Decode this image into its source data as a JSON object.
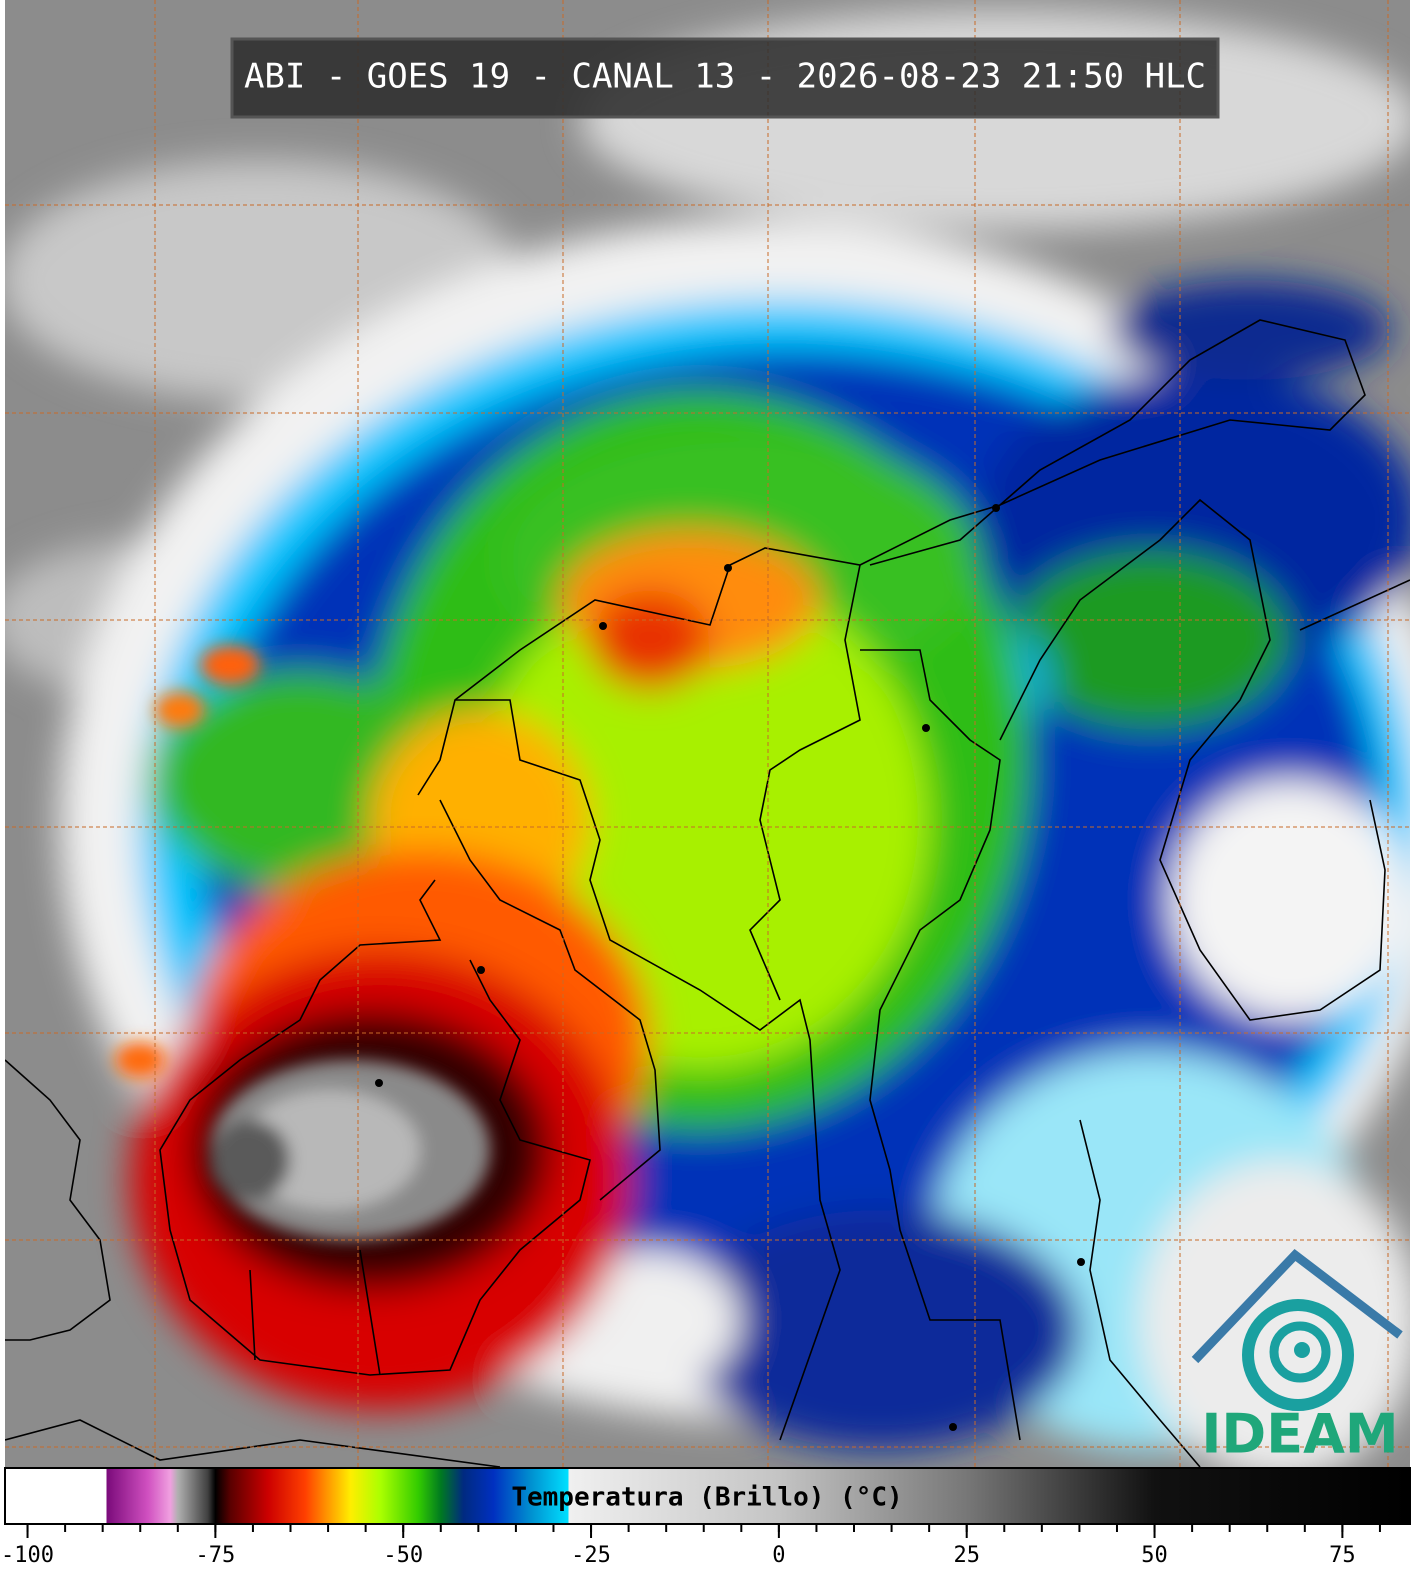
{
  "header": {
    "title": "ABI - GOES 19 - CANAL 13 - 2026-08-23 21:50 HLC"
  },
  "logo": {
    "text": "IDEAM"
  },
  "colorbar": {
    "label": "Temperatura (Brillo) (°C)",
    "xlim": [
      -103,
      84
    ],
    "ticks": [
      -100,
      -75,
      -50,
      -25,
      0,
      25,
      50,
      75
    ],
    "minor_ticks": [
      -100,
      -95,
      -90,
      -85,
      -80,
      -75,
      -70,
      -65,
      -60,
      -55,
      -50,
      -45,
      -40,
      -35,
      -30,
      -25,
      -20,
      -15,
      -10,
      -5,
      0,
      5,
      10,
      15,
      20,
      25,
      30,
      35,
      40,
      45,
      50,
      55,
      60,
      65,
      70,
      75,
      80
    ],
    "stops": [
      {
        "value": -103,
        "color": "#ffffff"
      },
      {
        "value": -89.5,
        "color": "#ffffff"
      },
      {
        "value": -89.5,
        "color": "#7a0a7a"
      },
      {
        "value": -84,
        "color": "#d050c0"
      },
      {
        "value": -81,
        "color": "#f0a0e0"
      },
      {
        "value": -80,
        "color": "#b0b0b0"
      },
      {
        "value": -76,
        "color": "#404040"
      },
      {
        "value": -75,
        "color": "#000000"
      },
      {
        "value": -73,
        "color": "#5a0000"
      },
      {
        "value": -68,
        "color": "#cc0000"
      },
      {
        "value": -63,
        "color": "#ff4000"
      },
      {
        "value": -60,
        "color": "#ff9900"
      },
      {
        "value": -57,
        "color": "#ffee00"
      },
      {
        "value": -53,
        "color": "#aaff00"
      },
      {
        "value": -48,
        "color": "#33cc00"
      },
      {
        "value": -45,
        "color": "#007a20"
      },
      {
        "value": -42,
        "color": "#002a80"
      },
      {
        "value": -38,
        "color": "#0030c0"
      },
      {
        "value": -33,
        "color": "#0090d0"
      },
      {
        "value": -28,
        "color": "#00e0ff"
      },
      {
        "value": -28,
        "color": "#f0f0f0"
      },
      {
        "value": 0,
        "color": "#c4c4c4"
      },
      {
        "value": 25,
        "color": "#777777"
      },
      {
        "value": 50,
        "color": "#111111"
      },
      {
        "value": 84,
        "color": "#000000"
      }
    ]
  }
}
